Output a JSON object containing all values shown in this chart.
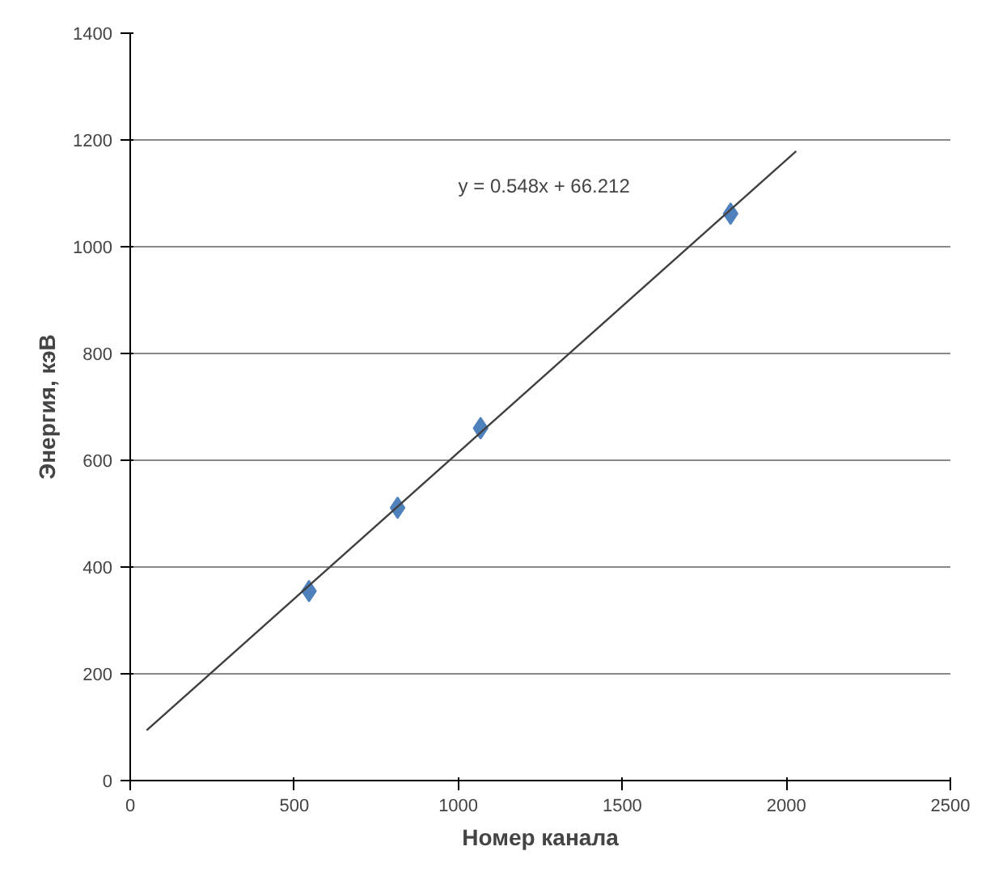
{
  "chart_data": {
    "type": "scatter",
    "xlabel": "Номер канала",
    "ylabel": "Энергия, кэВ",
    "xlim": [
      0,
      2500
    ],
    "xticks": [
      0,
      500,
      1000,
      1500,
      2000,
      2500
    ],
    "ylim": [
      0,
      1400
    ],
    "yticks": [
      0,
      200,
      400,
      600,
      800,
      1000,
      1200,
      1400
    ],
    "grid": "y",
    "annotations": [
      "y = 0.548x + 66.212"
    ],
    "series": [
      {
        "marker": "diamond",
        "color": "#4f81bd",
        "x": [
          545,
          815,
          1068,
          1830
        ],
        "values": [
          355,
          511,
          660,
          1062
        ]
      },
      {
        "type": "line",
        "marker": "none",
        "color": "#404040",
        "x": [
          50,
          2030
        ],
        "values": [
          94,
          1179
        ]
      }
    ]
  }
}
